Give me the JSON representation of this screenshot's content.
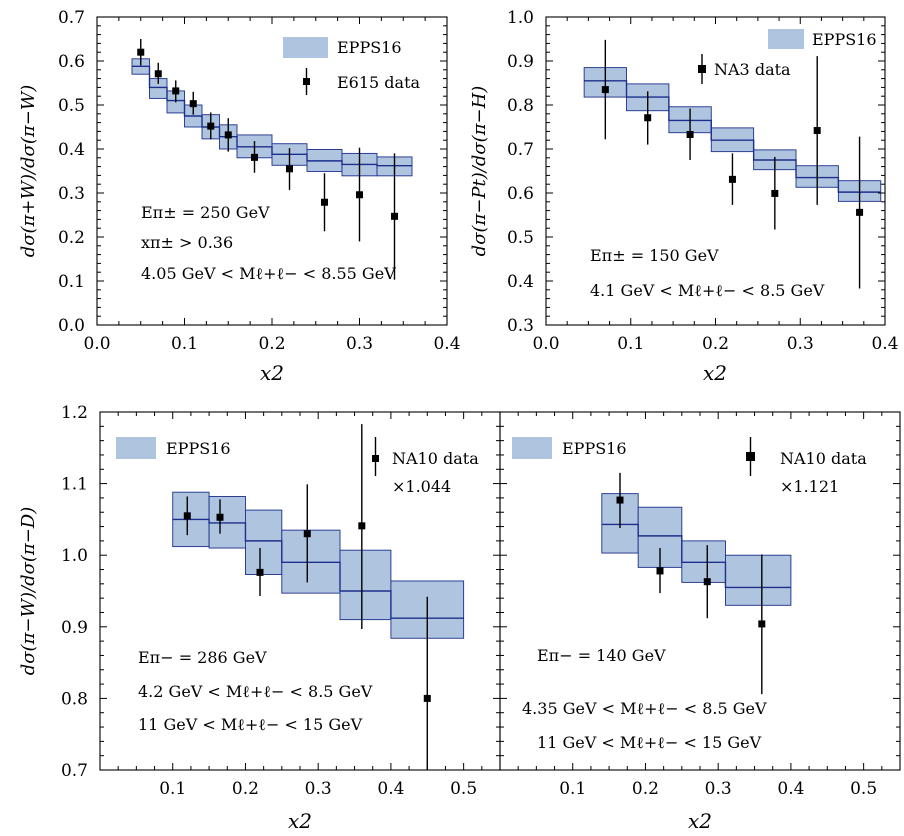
{
  "colors": {
    "band_fill": "#aec4df",
    "band_edge": "#1c2f8c",
    "data": "#000000"
  },
  "chart_data": [
    {
      "id": "p1",
      "type": "line",
      "xlabel": "x2",
      "ylabel": "dσ(π+W)/dσ(π−W)",
      "xlim": [
        0.0,
        0.4
      ],
      "ylim": [
        0.0,
        0.7
      ],
      "xticks": [
        "0.0",
        "0.1",
        "0.2",
        "0.3",
        "0.4"
      ],
      "yticks": [
        "0.0",
        "0.1",
        "0.2",
        "0.3",
        "0.4",
        "0.5",
        "0.6",
        "0.7"
      ],
      "legend": {
        "placement": "top-right",
        "band_label": "EPPS16",
        "data_label": "E615 data"
      },
      "annotations": [
        "Eπ± = 250 GeV",
        "xπ± > 0.36",
        "4.05 GeV < Mℓ+ℓ− < 8.55 GeV"
      ],
      "band": [
        {
          "x0": 0.04,
          "x1": 0.06,
          "lo": 0.57,
          "hi": 0.605,
          "c": 0.588
        },
        {
          "x0": 0.06,
          "x1": 0.08,
          "lo": 0.515,
          "hi": 0.56,
          "c": 0.54
        },
        {
          "x0": 0.08,
          "x1": 0.1,
          "lo": 0.482,
          "hi": 0.532,
          "c": 0.51
        },
        {
          "x0": 0.1,
          "x1": 0.12,
          "lo": 0.45,
          "hi": 0.5,
          "c": 0.475
        },
        {
          "x0": 0.12,
          "x1": 0.14,
          "lo": 0.423,
          "hi": 0.478,
          "c": 0.45
        },
        {
          "x0": 0.14,
          "x1": 0.16,
          "lo": 0.4,
          "hi": 0.455,
          "c": 0.428
        },
        {
          "x0": 0.16,
          "x1": 0.2,
          "lo": 0.38,
          "hi": 0.432,
          "c": 0.405
        },
        {
          "x0": 0.2,
          "x1": 0.24,
          "lo": 0.363,
          "hi": 0.412,
          "c": 0.388
        },
        {
          "x0": 0.24,
          "x1": 0.28,
          "lo": 0.349,
          "hi": 0.399,
          "c": 0.373
        },
        {
          "x0": 0.28,
          "x1": 0.32,
          "lo": 0.339,
          "hi": 0.39,
          "c": 0.365
        },
        {
          "x0": 0.32,
          "x1": 0.36,
          "lo": 0.339,
          "hi": 0.382,
          "c": 0.362
        }
      ],
      "points": [
        {
          "x": 0.05,
          "y": 0.62,
          "lo": 0.59,
          "hi": 0.65
        },
        {
          "x": 0.07,
          "y": 0.571,
          "lo": 0.548,
          "hi": 0.596
        },
        {
          "x": 0.09,
          "y": 0.532,
          "lo": 0.506,
          "hi": 0.556
        },
        {
          "x": 0.11,
          "y": 0.503,
          "lo": 0.478,
          "hi": 0.53
        },
        {
          "x": 0.13,
          "y": 0.452,
          "lo": 0.422,
          "hi": 0.483
        },
        {
          "x": 0.15,
          "y": 0.432,
          "lo": 0.394,
          "hi": 0.47
        },
        {
          "x": 0.18,
          "y": 0.381,
          "lo": 0.346,
          "hi": 0.418
        },
        {
          "x": 0.22,
          "y": 0.355,
          "lo": 0.307,
          "hi": 0.402
        },
        {
          "x": 0.26,
          "y": 0.279,
          "lo": 0.213,
          "hi": 0.345
        },
        {
          "x": 0.3,
          "y": 0.296,
          "lo": 0.19,
          "hi": 0.403
        },
        {
          "x": 0.34,
          "y": 0.247,
          "lo": 0.103,
          "hi": 0.39
        }
      ]
    },
    {
      "id": "p2",
      "type": "line",
      "xlabel": "x2",
      "ylabel": "dσ(π−Pt)/dσ(π−H)",
      "xlim": [
        0.0,
        0.4
      ],
      "ylim": [
        0.3,
        1.0
      ],
      "xticks": [
        "0.0",
        "0.1",
        "0.2",
        "0.3",
        "0.4"
      ],
      "yticks": [
        "0.3",
        "0.4",
        "0.5",
        "0.6",
        "0.7",
        "0.8",
        "0.9",
        "1.0"
      ],
      "legend": {
        "placement": "top-right",
        "band_label": "EPPS16",
        "data_label": "NA3 data"
      },
      "annotations": [
        "Eπ± = 150 GeV",
        "4.1 GeV < Mℓ+ℓ− < 8.5 GeV"
      ],
      "band": [
        {
          "x0": 0.045,
          "x1": 0.095,
          "lo": 0.818,
          "hi": 0.885,
          "c": 0.855
        },
        {
          "x0": 0.095,
          "x1": 0.145,
          "lo": 0.787,
          "hi": 0.848,
          "c": 0.818
        },
        {
          "x0": 0.145,
          "x1": 0.195,
          "lo": 0.737,
          "hi": 0.796,
          "c": 0.765
        },
        {
          "x0": 0.195,
          "x1": 0.245,
          "lo": 0.694,
          "hi": 0.748,
          "c": 0.72
        },
        {
          "x0": 0.245,
          "x1": 0.295,
          "lo": 0.653,
          "hi": 0.698,
          "c": 0.675
        },
        {
          "x0": 0.295,
          "x1": 0.345,
          "lo": 0.613,
          "hi": 0.662,
          "c": 0.635
        },
        {
          "x0": 0.345,
          "x1": 0.395,
          "lo": 0.581,
          "hi": 0.628,
          "c": 0.602
        }
      ],
      "points": [
        {
          "x": 0.07,
          "y": 0.835,
          "lo": 0.722,
          "hi": 0.948
        },
        {
          "x": 0.12,
          "y": 0.771,
          "lo": 0.71,
          "hi": 0.831
        },
        {
          "x": 0.17,
          "y": 0.733,
          "lo": 0.675,
          "hi": 0.792
        },
        {
          "x": 0.22,
          "y": 0.631,
          "lo": 0.573,
          "hi": 0.69
        },
        {
          "x": 0.27,
          "y": 0.599,
          "lo": 0.517,
          "hi": 0.682
        },
        {
          "x": 0.32,
          "y": 0.742,
          "lo": 0.573,
          "hi": 0.911
        },
        {
          "x": 0.37,
          "y": 0.556,
          "lo": 0.383,
          "hi": 0.728
        }
      ]
    },
    {
      "id": "p3",
      "type": "line",
      "xlabel": "x2",
      "ylabel": "dσ(π−W)/dσ(π−D)",
      "xlim": [
        0.0,
        0.55
      ],
      "ylim": [
        0.7,
        1.2
      ],
      "xticks": [
        "0.1",
        "0.2",
        "0.3",
        "0.4",
        "0.5"
      ],
      "yticks": [
        "0.7",
        "0.8",
        "0.9",
        "1.0",
        "1.1",
        "1.2"
      ],
      "legend": {
        "placement": "top",
        "band_label": "EPPS16",
        "data_label": "NA10 data",
        "data_note": "×1.044"
      },
      "annotations": [
        "Eπ− = 286 GeV",
        "4.2 GeV < Mℓ+ℓ− < 8.5 GeV",
        "11 GeV < Mℓ+ℓ− < 15 GeV"
      ],
      "band": [
        {
          "x0": 0.1,
          "x1": 0.15,
          "lo": 1.012,
          "hi": 1.088,
          "c": 1.05
        },
        {
          "x0": 0.15,
          "x1": 0.2,
          "lo": 1.01,
          "hi": 1.082,
          "c": 1.045
        },
        {
          "x0": 0.2,
          "x1": 0.25,
          "lo": 0.973,
          "hi": 1.063,
          "c": 1.02
        },
        {
          "x0": 0.25,
          "x1": 0.33,
          "lo": 0.947,
          "hi": 1.035,
          "c": 0.99
        },
        {
          "x0": 0.33,
          "x1": 0.4,
          "lo": 0.91,
          "hi": 1.007,
          "c": 0.95
        },
        {
          "x0": 0.4,
          "x1": 0.5,
          "lo": 0.884,
          "hi": 0.964,
          "c": 0.912
        }
      ],
      "points": [
        {
          "x": 0.12,
          "y": 1.055,
          "lo": 1.028,
          "hi": 1.082
        },
        {
          "x": 0.165,
          "y": 1.053,
          "lo": 1.03,
          "hi": 1.078
        },
        {
          "x": 0.22,
          "y": 0.976,
          "lo": 0.943,
          "hi": 1.01
        },
        {
          "x": 0.285,
          "y": 1.03,
          "lo": 0.962,
          "hi": 1.099
        },
        {
          "x": 0.36,
          "y": 1.041,
          "lo": 0.897,
          "hi": 1.183
        },
        {
          "x": 0.45,
          "y": 0.8,
          "lo": 0.7,
          "hi": 0.942
        }
      ]
    },
    {
      "id": "p4",
      "type": "line",
      "xlabel": "x2",
      "ylabel": "",
      "xlim": [
        0.0,
        0.55
      ],
      "ylim": [
        0.7,
        1.2
      ],
      "xticks": [
        "0.1",
        "0.2",
        "0.3",
        "0.4",
        "0.5"
      ],
      "yticks": [],
      "legend": {
        "placement": "top",
        "band_label": "EPPS16",
        "data_label": "NA10 data",
        "data_note": "×1.121"
      },
      "annotations": [
        "Eπ− = 140 GeV",
        "4.35 GeV < Mℓ+ℓ− < 8.5 GeV",
        "11 GeV < Mℓ+ℓ− < 15 GeV"
      ],
      "band": [
        {
          "x0": 0.14,
          "x1": 0.19,
          "lo": 1.003,
          "hi": 1.086,
          "c": 1.043
        },
        {
          "x0": 0.19,
          "x1": 0.25,
          "lo": 0.983,
          "hi": 1.067,
          "c": 1.027
        },
        {
          "x0": 0.25,
          "x1": 0.31,
          "lo": 0.962,
          "hi": 1.02,
          "c": 0.99
        },
        {
          "x0": 0.31,
          "x1": 0.4,
          "lo": 0.93,
          "hi": 1.0,
          "c": 0.955
        }
      ],
      "points": [
        {
          "x": 0.165,
          "y": 1.077,
          "lo": 1.038,
          "hi": 1.115
        },
        {
          "x": 0.22,
          "y": 0.978,
          "lo": 0.947,
          "hi": 1.01
        },
        {
          "x": 0.285,
          "y": 0.963,
          "lo": 0.912,
          "hi": 1.014
        },
        {
          "x": 0.36,
          "y": 0.904,
          "lo": 0.806,
          "hi": 1.001
        }
      ]
    }
  ]
}
